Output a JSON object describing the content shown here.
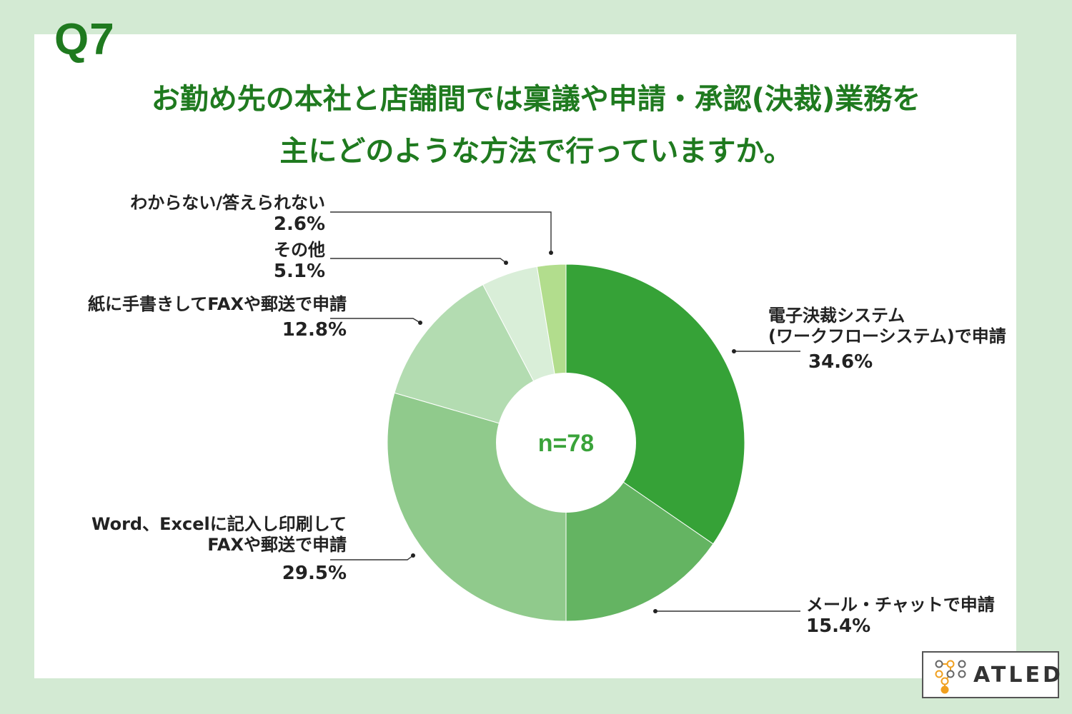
{
  "question": {
    "number": "Q7",
    "line1": "お勤め先の本社と店舗間では稟議や申請・承認(決裁)業務を",
    "line2": "主にどのような方法で行っていますか。"
  },
  "logo": {
    "text": "ATLED",
    "icon": "atled-node-logo-icon"
  },
  "colors": {
    "background": "#d3ead3",
    "title": "#1f7a1f",
    "center_text": "#3aa33a"
  },
  "chart_data": {
    "type": "pie",
    "donut": true,
    "center_label": "n=78",
    "slices": [
      {
        "label": "電子決裁システム(ワークフローシステム)で申請",
        "value": 34.6,
        "value_label": "34.6%",
        "color": "#36a237"
      },
      {
        "label": "メール・チャットで申請",
        "value": 15.4,
        "value_label": "15.4%",
        "color": "#64b462"
      },
      {
        "label": "Word、Excelに記入し印刷してFAXや郵送で申請",
        "value": 29.5,
        "value_label": "29.5%",
        "color": "#90ca8c"
      },
      {
        "label": "紙に手書きしてFAXや郵送で申請",
        "value": 12.8,
        "value_label": "12.8%",
        "color": "#b3dcb1"
      },
      {
        "label": "その他",
        "value": 5.1,
        "value_label": "5.1%",
        "color": "#d9eed8"
      },
      {
        "label": "わからない/答えられない",
        "value": 2.6,
        "value_label": "2.6%",
        "color": "#b2dd8d"
      }
    ],
    "label_lines": {
      "s0": [
        "電子決裁システム",
        "(ワークフローシステム)で申請"
      ],
      "s1": [
        "メール・チャットで申請"
      ],
      "s2": [
        "Word、Excelに記入し印刷して",
        "FAXや郵送で申請"
      ],
      "s3": [
        "紙に手書きしてFAXや郵送で申請"
      ],
      "s4": [
        "その他"
      ],
      "s5": [
        "わからない/答えられない"
      ]
    }
  }
}
